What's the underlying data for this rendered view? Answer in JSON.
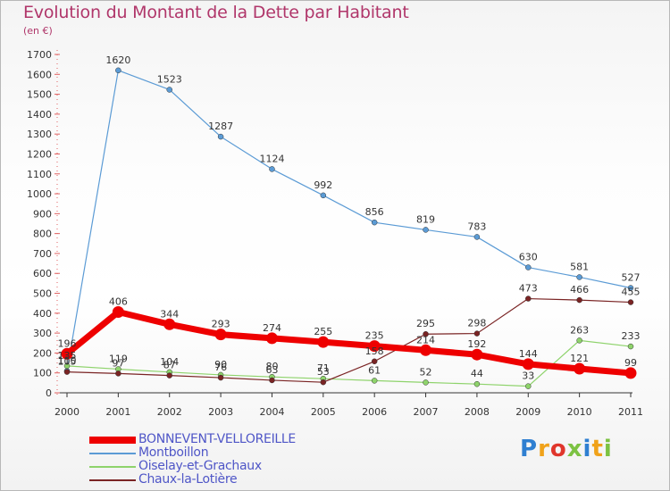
{
  "chart_data": {
    "type": "line",
    "title": "Evolution du Montant de la Dette par Habitant",
    "unit_label": "(en €)",
    "xlabel": "",
    "ylabel": "",
    "x": [
      "2000",
      "2001",
      "2002",
      "2003",
      "2004",
      "2005",
      "2006",
      "2007",
      "2008",
      "2009",
      "2010",
      "2011"
    ],
    "ylim": [
      0,
      1700
    ],
    "yticks": [
      0,
      100,
      200,
      300,
      400,
      500,
      600,
      700,
      800,
      900,
      1000,
      1100,
      1200,
      1300,
      1400,
      1500,
      1600,
      1700
    ],
    "grid": false,
    "legend_position": "bottom-left",
    "series": [
      {
        "name": "BONNEVENT-VELLOREILLE",
        "color": "#ee0000",
        "values": [
          196,
          406,
          344,
          293,
          274,
          255,
          235,
          214,
          192,
          144,
          121,
          99
        ]
      },
      {
        "name": "Montboillon",
        "color": "#5b9bd5",
        "values": [
          110,
          1620,
          1523,
          1287,
          1124,
          992,
          856,
          819,
          783,
          630,
          581,
          527
        ]
      },
      {
        "name": "Oiselay-et-Grachaux",
        "color": "#8ed36b",
        "values": [
          135,
          119,
          104,
          90,
          80,
          71,
          61,
          52,
          44,
          33,
          263,
          233
        ]
      },
      {
        "name": "Chaux-la-Lotière",
        "color": "#7a2424",
        "values": [
          105,
          97,
          87,
          76,
          63,
          53,
          158,
          295,
          298,
          473,
          466,
          455
        ]
      }
    ]
  },
  "logo": {
    "text": "Proxiti"
  }
}
